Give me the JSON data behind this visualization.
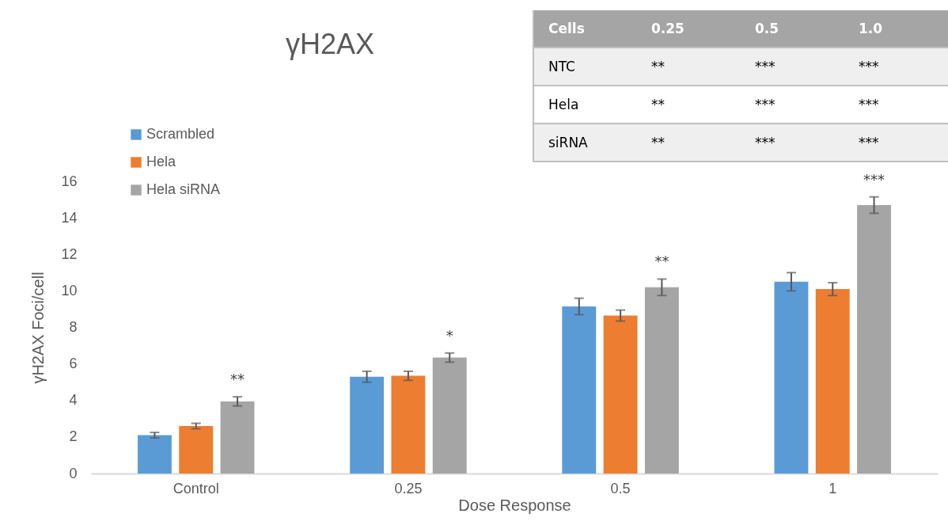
{
  "chart_data": {
    "type": "bar",
    "title": "γH2AX",
    "xlabel": "Dose Response",
    "ylabel": "γH2AX Foci/cell",
    "categories": [
      "Control",
      "0.25",
      "0.5",
      "1"
    ],
    "series": [
      {
        "name": "Scrambled",
        "color": "#5b9bd5",
        "values": [
          2.1,
          5.3,
          9.15,
          10.5
        ],
        "errors": [
          0.15,
          0.3,
          0.45,
          0.5
        ]
      },
      {
        "name": "Hela",
        "color": "#ed7d31",
        "values": [
          2.6,
          5.35,
          8.65,
          10.1
        ],
        "errors": [
          0.15,
          0.25,
          0.3,
          0.35
        ]
      },
      {
        "name": "Hela siRNA",
        "color": "#a5a5a5",
        "values": [
          3.95,
          6.35,
          10.2,
          14.7
        ],
        "errors": [
          0.25,
          0.25,
          0.45,
          0.45
        ],
        "value_labels": [
          "**",
          "*",
          "**",
          "***"
        ]
      }
    ],
    "ylim": [
      0,
      16
    ],
    "yticks": [
      0,
      2,
      4,
      6,
      8,
      10,
      12,
      14,
      16
    ],
    "grid": false,
    "legend": "top left",
    "annotations": [
      "Cells",
      "0.25",
      "0.5",
      "1.0",
      "NTC",
      "**",
      "***",
      "***",
      "Hela",
      "**",
      "***",
      "***",
      "siRNA",
      "**",
      "***",
      "***"
    ]
  }
}
